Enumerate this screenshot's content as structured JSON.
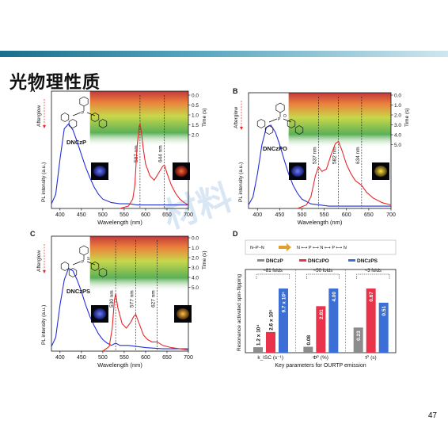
{
  "slide": {
    "title": "光物理性质",
    "page_number": "47",
    "watermark": "材料"
  },
  "colors": {
    "red": "#e8282b",
    "blue": "#2430d8",
    "gray": "#8c8c8c",
    "fig_red": "#e8334a",
    "fig_blue": "#3b6fd6"
  },
  "panels": [
    {
      "letter": "A",
      "compound": "DNCzP",
      "xlabel": "Wavelength (nm)",
      "ylabel_pl": "PL intensity (a.u.)",
      "ylabel_afterglow": "Afterglow",
      "ylabel_time": "Time (s)",
      "xticks": [
        "400",
        "450",
        "500",
        "550",
        "600",
        "650",
        "700"
      ],
      "time_ticks": [
        "0.0",
        "0.5",
        "1.0",
        "1.5",
        "2.0"
      ],
      "peaks": [
        "587 nm",
        "644 nm"
      ],
      "chart_data": {
        "type": "line",
        "xlabel": "Wavelength (nm)",
        "ylabel": "PL intensity (a.u.)",
        "xlim": [
          380,
          700
        ],
        "series": [
          {
            "color": "blue",
            "x": [
              380,
              390,
              400,
              410,
              420,
              430,
              440,
              450,
              460,
              470,
              480,
              490,
              500,
              520,
              540,
              560,
              580,
              600,
              620,
              640,
              660,
              680,
              700
            ],
            "y": [
              0.04,
              0.12,
              0.42,
              0.68,
              0.72,
              0.67,
              0.57,
              0.46,
              0.35,
              0.26,
              0.18,
              0.12,
              0.08,
              0.05,
              0.04,
              0.04,
              0.03,
              0.03,
              0.03,
              0.03,
              0.03,
              0.03,
              0.03
            ]
          },
          {
            "color": "red",
            "x": [
              540,
              560,
              570,
              575,
              580,
              585,
              587,
              590,
              595,
              600,
              610,
              620,
              630,
              640,
              644,
              650,
              660,
              670,
              680,
              690,
              700
            ],
            "y": [
              0.0,
              0.02,
              0.08,
              0.2,
              0.52,
              0.7,
              0.72,
              0.66,
              0.5,
              0.38,
              0.28,
              0.24,
              0.3,
              0.36,
              0.37,
              0.3,
              0.2,
              0.13,
              0.08,
              0.05,
              0.03
            ]
          }
        ]
      }
    },
    {
      "letter": "B",
      "compound": "DNCzPO",
      "xlabel": "Wavelength (nm)",
      "ylabel_pl": "PL intensity (a.u.)",
      "ylabel_afterglow": "Afterglow",
      "ylabel_time": "Time (s)",
      "xticks": [
        "400",
        "450",
        "500",
        "550",
        "600",
        "650",
        "700"
      ],
      "time_ticks": [
        "0.0",
        "1.0",
        "2.0",
        "3.0",
        "4.0",
        "5.0"
      ],
      "peaks": [
        "537 nm",
        "582 nm",
        "634 nm"
      ],
      "chart_data": {
        "type": "line",
        "xlabel": "Wavelength (nm)",
        "ylabel": "PL intensity (a.u.)",
        "xlim": [
          380,
          700
        ],
        "series": [
          {
            "color": "blue",
            "x": [
              380,
              390,
              400,
              410,
              420,
              430,
              440,
              450,
              460,
              470,
              480,
              490,
              500,
              520,
              540,
              560,
              580,
              600,
              640,
              700
            ],
            "y": [
              0.03,
              0.1,
              0.3,
              0.55,
              0.7,
              0.72,
              0.66,
              0.55,
              0.42,
              0.3,
              0.2,
              0.13,
              0.08,
              0.04,
              0.03,
              0.02,
              0.02,
              0.02,
              0.02,
              0.02
            ]
          },
          {
            "color": "red",
            "x": [
              490,
              510,
              520,
              530,
              537,
              545,
              555,
              565,
              575,
              582,
              590,
              600,
              610,
              620,
              634,
              645,
              660,
              680,
              700
            ],
            "y": [
              0.0,
              0.03,
              0.1,
              0.28,
              0.36,
              0.32,
              0.34,
              0.46,
              0.56,
              0.58,
              0.5,
              0.38,
              0.3,
              0.24,
              0.2,
              0.14,
              0.09,
              0.05,
              0.03
            ]
          }
        ]
      }
    },
    {
      "letter": "C",
      "compound": "DNCzPS",
      "xlabel": "Wavelength (nm)",
      "ylabel_pl": "PL intensity (a.u.)",
      "ylabel_afterglow": "Afterglow",
      "ylabel_time": "Time (s)",
      "xticks": [
        "400",
        "450",
        "500",
        "550",
        "600",
        "650",
        "700"
      ],
      "time_ticks": [
        "0.0",
        "1.0",
        "2.0",
        "3.0",
        "4.0",
        "5.0"
      ],
      "peaks": [
        "530 nm",
        "577 nm",
        "627 nm"
      ],
      "chart_data": {
        "type": "line",
        "xlabel": "Wavelength (nm)",
        "ylabel": "PL intensity (a.u.)",
        "xlim": [
          380,
          700
        ],
        "series": [
          {
            "color": "blue",
            "x": [
              380,
              390,
              400,
              410,
              420,
              430,
              440,
              450,
              460,
              470,
              480,
              490,
              500,
              510,
              520,
              530,
              540,
              560,
              580,
              600,
              640,
              700
            ],
            "y": [
              0.04,
              0.12,
              0.4,
              0.62,
              0.72,
              0.7,
              0.62,
              0.52,
              0.4,
              0.3,
              0.22,
              0.15,
              0.1,
              0.07,
              0.05,
              0.07,
              0.05,
              0.05,
              0.04,
              0.03,
              0.02,
              0.02
            ]
          },
          {
            "color": "red",
            "x": [
              500,
              515,
              522,
              527,
              530,
              535,
              545,
              555,
              565,
              572,
              577,
              585,
              595,
              605,
              615,
              627,
              640,
              660,
              680,
              700
            ],
            "y": [
              0.0,
              0.04,
              0.2,
              0.44,
              0.5,
              0.38,
              0.24,
              0.2,
              0.25,
              0.3,
              0.32,
              0.24,
              0.14,
              0.1,
              0.08,
              0.08,
              0.05,
              0.03,
              0.02,
              0.01
            ]
          }
        ]
      }
    }
  ],
  "panel_d": {
    "letter": "D",
    "ylabel": "Resonance activated spin-flipping",
    "xlabel": "Key parameters for OURTP emission",
    "legend": [
      "DNCzP",
      "DNCzPO",
      "DNCzPS"
    ],
    "group_labels": [
      "k_ISC (s⁻¹)",
      "Φᴾ (%)",
      "τᴾ (s)"
    ],
    "fold_labels": [
      "~81 folds",
      "~50 folds",
      "~3 folds"
    ],
    "chart_data": {
      "type": "bar",
      "categories": [
        "k_ISC (s⁻¹)",
        "Φᴾ (%)",
        "τᴾ (s)"
      ],
      "series": [
        {
          "name": "DNCzP",
          "values": [
            12000,
            0.08,
            0.23
          ],
          "labels": [
            "1.2 x 10⁴",
            "0.08",
            "0.23"
          ]
        },
        {
          "name": "DNCzPO",
          "values": [
            260000,
            2.81,
            0.67
          ],
          "labels": [
            "2.6 x 10⁵",
            "2.81",
            "0.67"
          ]
        },
        {
          "name": "DNCzPS",
          "values": [
            970000,
            4.0,
            0.51
          ],
          "labels": [
            "9.7 x 10⁵",
            "4.00",
            "0.51"
          ]
        }
      ]
    }
  }
}
